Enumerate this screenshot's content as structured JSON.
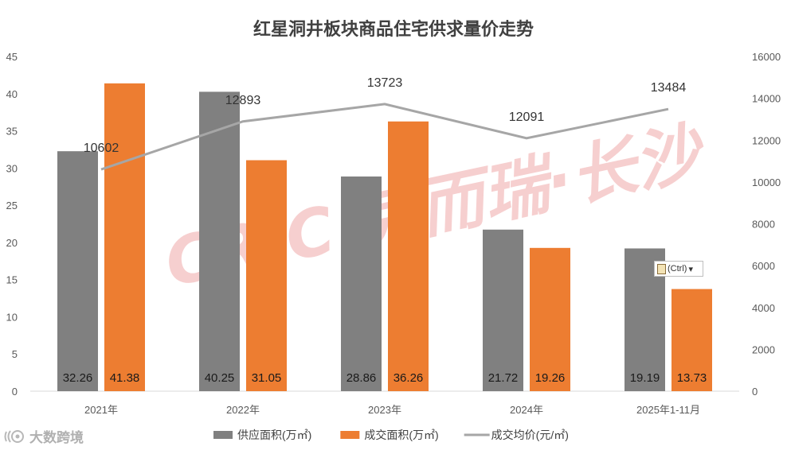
{
  "chart_data": {
    "type": "bar+line",
    "title": "红星洞井板块商品住宅供求量价走势",
    "categories": [
      "2021年",
      "2022年",
      "2023年",
      "2024年",
      "2025年1-11月"
    ],
    "series": [
      {
        "name": "供应面积(万㎡)",
        "type": "bar",
        "axis": "left",
        "color": "#808080",
        "values": [
          32.26,
          40.25,
          28.86,
          21.72,
          19.19
        ],
        "labels": [
          "32.26",
          "40.25",
          "28.86",
          "21.72",
          "19.19"
        ]
      },
      {
        "name": "成交面积(万㎡)",
        "type": "bar",
        "axis": "left",
        "color": "#ED7D31",
        "values": [
          41.38,
          31.05,
          36.26,
          19.26,
          13.73
        ],
        "labels": [
          "41.38",
          "31.05",
          "36.26",
          "19.26",
          "13.73"
        ]
      },
      {
        "name": "成交均价(元/㎡)",
        "type": "line",
        "axis": "right",
        "color": "#A6A6A6",
        "values": [
          10602,
          12893,
          13723,
          12091,
          13484
        ],
        "labels": [
          "10602",
          "12893",
          "13723",
          "12091",
          "13484"
        ]
      }
    ],
    "left_axis": {
      "min": 0,
      "max": 45,
      "ticks": [
        "0",
        "5",
        "10",
        "15",
        "20",
        "25",
        "30",
        "35",
        "40",
        "45"
      ]
    },
    "right_axis": {
      "min": 0,
      "max": 16000,
      "ticks": [
        "0",
        "2000",
        "4000",
        "6000",
        "8000",
        "10000",
        "12000",
        "14000",
        "16000"
      ]
    },
    "legend_position": "bottom",
    "grid": false
  },
  "watermark": {
    "text": "CRIC 克而瑞·长沙",
    "color": "#f2b8b8"
  },
  "paste_options": {
    "label": "(Ctrl)",
    "caret": "▾"
  },
  "source": {
    "label": "大数跨境",
    "icon": "brand-logo-icon"
  }
}
